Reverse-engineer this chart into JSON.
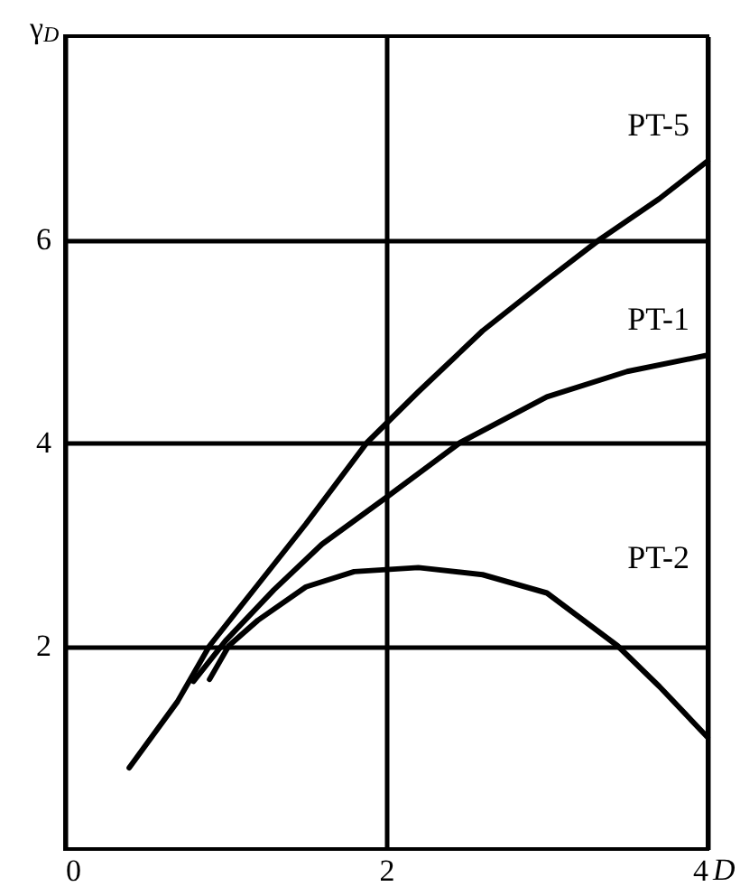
{
  "chart_data": {
    "type": "line",
    "xlabel": "D",
    "ylabel": "γ$_{D}$",
    "xlim": [
      0,
      4
    ],
    "ylim": [
      0,
      8
    ],
    "xticks": [
      0,
      2,
      4
    ],
    "yticks": [
      2,
      4,
      6
    ],
    "grid": true,
    "marker": "none",
    "line_style": "solid",
    "series": [
      {
        "name": "PT-5",
        "color": "#000000",
        "x": [
          0.4,
          0.7,
          0.9,
          1.2,
          1.5,
          1.88,
          2.2,
          2.6,
          3.0,
          3.33,
          3.7,
          4.0
        ],
        "values": [
          0.8,
          1.45,
          2.0,
          2.6,
          3.2,
          4.0,
          4.5,
          5.1,
          5.6,
          6.0,
          6.4,
          6.77
        ]
      },
      {
        "name": "PT-1",
        "color": "#000000",
        "x": [
          0.8,
          1.0,
          1.3,
          1.6,
          2.0,
          2.46,
          3.0,
          3.5,
          4.0
        ],
        "values": [
          1.65,
          2.05,
          2.55,
          3.0,
          3.46,
          4.0,
          4.45,
          4.7,
          4.86
        ]
      },
      {
        "name": "PT-2",
        "color": "#000000",
        "x": [
          0.9,
          1.02,
          1.2,
          1.5,
          1.8,
          2.2,
          2.6,
          3.0,
          3.44,
          3.7,
          4.0
        ],
        "values": [
          1.67,
          2.0,
          2.25,
          2.58,
          2.73,
          2.77,
          2.7,
          2.52,
          2.0,
          1.6,
          1.1
        ]
      }
    ]
  }
}
